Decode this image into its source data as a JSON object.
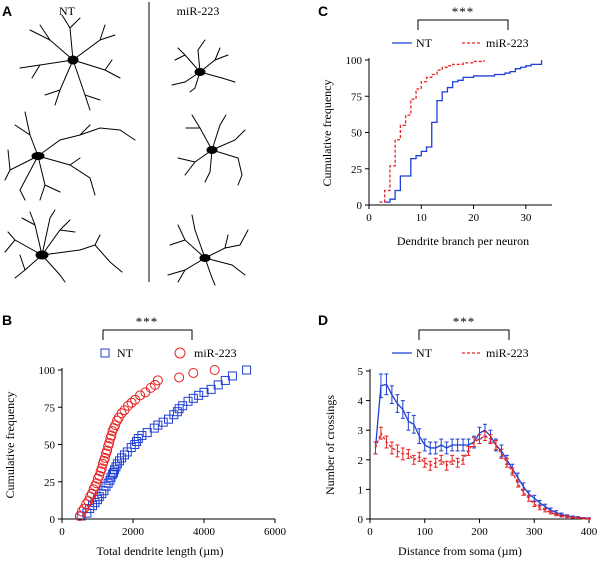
{
  "panels": {
    "A": {
      "letter": "A",
      "col_nt": "NT",
      "col_mir": "miR-223",
      "neuron_icon": "neuron-tracing-icon"
    },
    "B": {
      "letter": "B"
    },
    "C": {
      "letter": "C"
    },
    "D": {
      "letter": "D"
    }
  },
  "colors": {
    "nt": "#1f3fd6",
    "mir": "#e82020",
    "axis": "#000000"
  },
  "chart_data": [
    {
      "id": "B",
      "type": "scatter",
      "title": "",
      "significance": "***",
      "xlabel": "Total dendrite length (µm)",
      "ylabel": "Cumulative frequency",
      "xlim": [
        0,
        6000
      ],
      "ylim": [
        0,
        100
      ],
      "xticks": [
        0,
        2000,
        4000,
        6000
      ],
      "yticks": [
        0,
        25,
        50,
        75,
        100
      ],
      "legend": [
        "NT",
        "miR-223"
      ],
      "legend_position": "top",
      "series": [
        {
          "name": "NT",
          "marker": "square",
          "x": [
            540,
            700,
            780,
            860,
            930,
            1000,
            1050,
            1120,
            1180,
            1240,
            1300,
            1350,
            1380,
            1420,
            1450,
            1480,
            1520,
            1560,
            1620,
            1680,
            1760,
            1840,
            1950,
            2050,
            2100,
            2150,
            2250,
            2400,
            2600,
            2700,
            2850,
            3000,
            3150,
            3250,
            3300,
            3400,
            3550,
            3700,
            3850,
            4000,
            4200,
            4400,
            4600,
            4800,
            5200
          ],
          "y": [
            2,
            4,
            7,
            9,
            11,
            13,
            15,
            17,
            19,
            22,
            24,
            26,
            28,
            30,
            31,
            33,
            35,
            37,
            39,
            41,
            43,
            45,
            48,
            50,
            52,
            54,
            56,
            58,
            61,
            63,
            65,
            67,
            70,
            72,
            74,
            76,
            79,
            81,
            83,
            85,
            87,
            90,
            93,
            96,
            100
          ]
        },
        {
          "name": "miR-223",
          "marker": "circle",
          "x": [
            500,
            560,
            620,
            680,
            740,
            790,
            840,
            890,
            930,
            970,
            1010,
            1050,
            1090,
            1120,
            1150,
            1180,
            1210,
            1240,
            1270,
            1300,
            1330,
            1360,
            1390,
            1420,
            1460,
            1500,
            1550,
            1600,
            1680,
            1760,
            1860,
            1960,
            2060,
            2200,
            2350,
            2500,
            2620,
            2700,
            3300,
            3700,
            4300
          ],
          "y": [
            2,
            5,
            7,
            10,
            12,
            15,
            17,
            20,
            22,
            24,
            27,
            29,
            32,
            34,
            37,
            39,
            41,
            44,
            46,
            49,
            51,
            54,
            56,
            59,
            61,
            63,
            66,
            68,
            71,
            73,
            76,
            78,
            80,
            83,
            85,
            88,
            90,
            93,
            95,
            98,
            100
          ]
        }
      ]
    },
    {
      "id": "C",
      "type": "line",
      "title": "",
      "significance": "***",
      "xlabel": "Dendrite branch per neuron",
      "ylabel": "Cumulative frequency",
      "xlim": [
        0,
        35
      ],
      "ylim": [
        0,
        100
      ],
      "xticks": [
        0,
        10,
        20,
        30
      ],
      "yticks": [
        0,
        25,
        50,
        75,
        100
      ],
      "legend": [
        "NT",
        "miR-223"
      ],
      "legend_position": "top",
      "series": [
        {
          "name": "NT",
          "style": "solid-step",
          "x": [
            3,
            4,
            5,
            6,
            7,
            8,
            9,
            10,
            11,
            12,
            13,
            14,
            15,
            16,
            17,
            18,
            20,
            22,
            24,
            26,
            27,
            28,
            29,
            30,
            31,
            32,
            33
          ],
          "y": [
            2,
            4,
            10,
            20,
            20,
            32,
            34,
            37,
            40,
            57,
            72,
            78,
            81,
            85,
            86,
            88,
            89,
            89,
            90,
            91,
            92,
            94,
            95,
            96,
            97,
            97,
            100
          ]
        },
        {
          "name": "miR-223",
          "style": "dashed-step",
          "x": [
            2,
            3,
            4,
            5,
            6,
            7,
            8,
            9,
            10,
            11,
            12,
            13,
            14,
            15,
            16,
            18,
            20,
            22
          ],
          "y": [
            2,
            10,
            27,
            45,
            55,
            62,
            73,
            80,
            85,
            88,
            90,
            93,
            95,
            96,
            97,
            98,
            99,
            100
          ]
        }
      ]
    },
    {
      "id": "D",
      "type": "line",
      "title": "",
      "significance": "***",
      "xlabel": "Distance from soma (µm)",
      "ylabel": "Number of crossings",
      "xlim": [
        0,
        400
      ],
      "ylim": [
        0,
        5
      ],
      "xticks": [
        0,
        100,
        200,
        300,
        400
      ],
      "yticks": [
        0,
        1,
        2,
        3,
        4,
        5
      ],
      "legend": [
        "NT",
        "miR-223"
      ],
      "legend_position": "top",
      "error_bars": true,
      "series": [
        {
          "name": "NT",
          "style": "solid",
          "x": [
            10,
            20,
            30,
            40,
            50,
            60,
            70,
            80,
            90,
            100,
            110,
            120,
            130,
            140,
            150,
            160,
            170,
            180,
            190,
            200,
            210,
            220,
            230,
            240,
            250,
            260,
            270,
            280,
            290,
            300,
            310,
            320,
            330,
            340,
            350,
            360,
            370,
            380,
            390,
            400
          ],
          "y": [
            2.4,
            4.5,
            4.55,
            4.2,
            3.9,
            3.7,
            3.3,
            3.2,
            2.8,
            2.5,
            2.4,
            2.4,
            2.5,
            2.4,
            2.5,
            2.5,
            2.5,
            2.5,
            2.6,
            2.9,
            3.0,
            2.8,
            2.5,
            2.3,
            2.0,
            1.7,
            1.4,
            1.1,
            0.85,
            0.7,
            0.55,
            0.42,
            0.3,
            0.22,
            0.15,
            0.1,
            0.07,
            0.05,
            0.03,
            0.02
          ],
          "err": [
            0.2,
            0.4,
            0.35,
            0.3,
            0.3,
            0.3,
            0.3,
            0.3,
            0.25,
            0.2,
            0.2,
            0.2,
            0.2,
            0.2,
            0.2,
            0.2,
            0.2,
            0.2,
            0.2,
            0.2,
            0.2,
            0.2,
            0.2,
            0.2,
            0.15,
            0.15,
            0.15,
            0.12,
            0.1,
            0.1,
            0.08,
            0.08,
            0.07,
            0.06,
            0.05,
            0.04,
            0.03,
            0.03,
            0.02,
            0.02
          ]
        },
        {
          "name": "miR-223",
          "style": "dashed",
          "x": [
            10,
            20,
            30,
            40,
            50,
            60,
            70,
            80,
            90,
            100,
            110,
            120,
            130,
            140,
            150,
            160,
            170,
            180,
            190,
            200,
            210,
            220,
            230,
            240,
            250,
            260,
            270,
            280,
            290,
            300,
            310,
            320,
            330,
            340,
            350,
            360,
            370,
            380,
            390,
            400
          ],
          "y": [
            2.4,
            2.9,
            2.6,
            2.4,
            2.3,
            2.2,
            2.2,
            2.0,
            2.1,
            1.9,
            1.8,
            1.9,
            2.0,
            1.8,
            2.0,
            1.9,
            2.0,
            2.3,
            2.6,
            2.7,
            2.8,
            2.7,
            2.5,
            2.2,
            1.9,
            1.6,
            1.2,
            0.9,
            0.7,
            0.5,
            0.38,
            0.3,
            0.22,
            0.15,
            0.1,
            0.08,
            0.05,
            0.04,
            0.02,
            0.01
          ],
          "err": [
            0.2,
            0.2,
            0.2,
            0.2,
            0.2,
            0.2,
            0.15,
            0.15,
            0.15,
            0.15,
            0.15,
            0.15,
            0.15,
            0.15,
            0.15,
            0.15,
            0.15,
            0.15,
            0.15,
            0.15,
            0.15,
            0.15,
            0.15,
            0.15,
            0.15,
            0.12,
            0.12,
            0.1,
            0.1,
            0.08,
            0.07,
            0.06,
            0.05,
            0.04,
            0.03,
            0.03,
            0.02,
            0.02,
            0.02,
            0.01
          ]
        }
      ]
    }
  ]
}
